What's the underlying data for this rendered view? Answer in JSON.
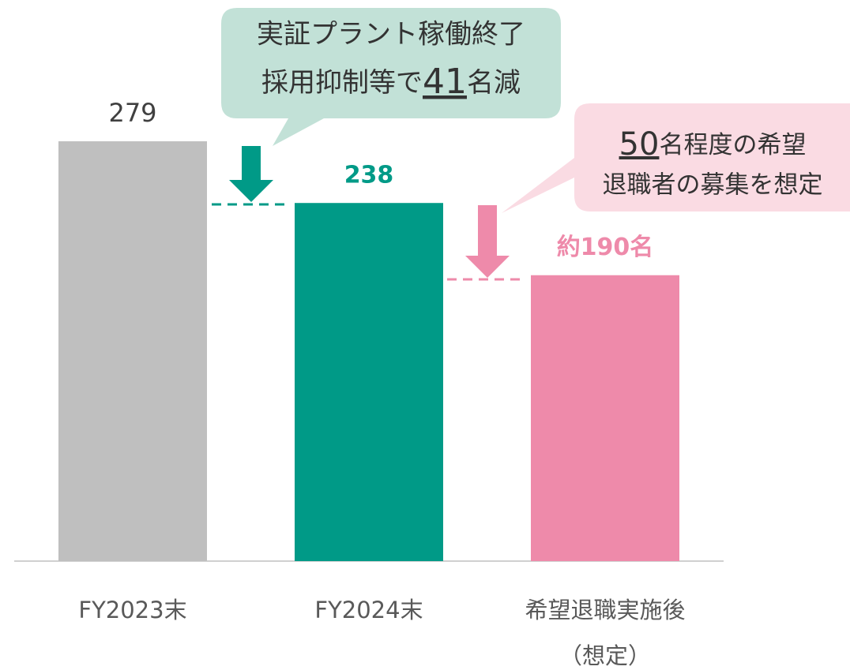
{
  "chart_data": {
    "type": "bar",
    "categories": [
      "FY2023末",
      "FY2024末",
      "希望退職実施後\n（想定）"
    ],
    "values": [
      279,
      238,
      190
    ],
    "value_labels": [
      "279",
      "238",
      "約190名"
    ],
    "colors": [
      "#bfbfbf",
      "#009a87",
      "#ee8aaa"
    ],
    "ylim": [
      0,
      300
    ],
    "annotations": [
      {
        "line1": "実証プラント稼働終了",
        "line2_prefix": "採用抑制等で",
        "number": 41,
        "line2_suffix": "名減"
      },
      {
        "number": 50,
        "line1_suffix": "名程度の希望",
        "line2": "退職者の募集を想定"
      }
    ]
  }
}
